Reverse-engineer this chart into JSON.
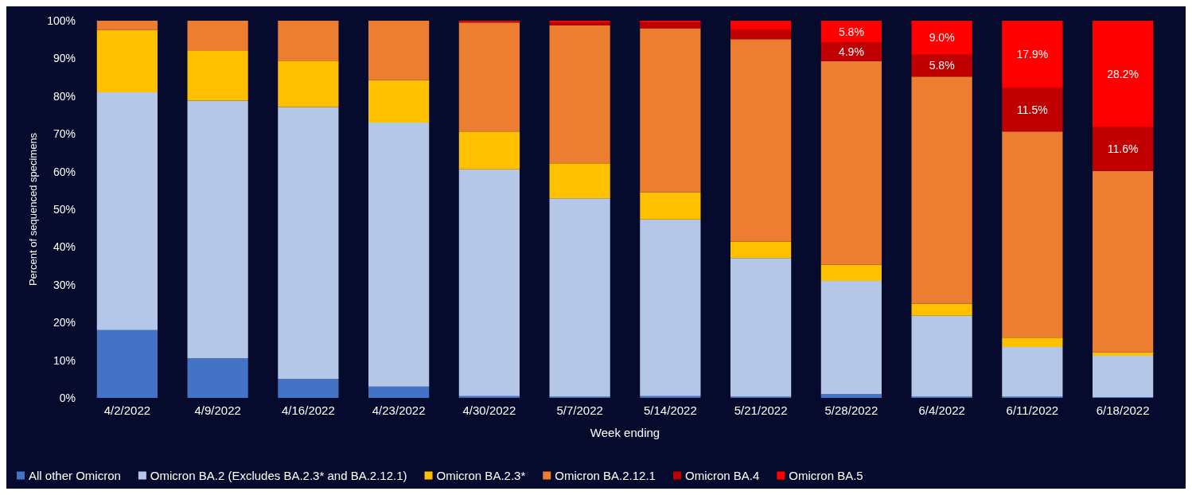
{
  "chart_data": {
    "type": "bar",
    "stacked": true,
    "xlabel": "Week ending",
    "ylabel": "Percent of sequenced specimens",
    "categories": [
      "4/2/2022",
      "4/9/2022",
      "4/16/2022",
      "4/23/2022",
      "4/30/2022",
      "5/7/2022",
      "5/14/2022",
      "5/21/2022",
      "5/28/2022",
      "6/4/2022",
      "6/11/2022",
      "6/18/2022"
    ],
    "ylim": [
      0,
      100
    ],
    "yticks": [
      {
        "value": 0,
        "label": "0%"
      },
      {
        "value": 10,
        "label": "10%"
      },
      {
        "value": 20,
        "label": "20%"
      },
      {
        "value": 30,
        "label": "30%"
      },
      {
        "value": 40,
        "label": "40%"
      },
      {
        "value": 50,
        "label": "50%"
      },
      {
        "value": 60,
        "label": "60%"
      },
      {
        "value": 70,
        "label": "70%"
      },
      {
        "value": 80,
        "label": "80%"
      },
      {
        "value": 90,
        "label": "90%"
      },
      {
        "value": 100,
        "label": "100%"
      }
    ],
    "grid": false,
    "legend": "bottom",
    "series": [
      {
        "name": "All other Omicron",
        "color": "#4472c4",
        "values": [
          18,
          10.5,
          5,
          3,
          0.5,
          0.3,
          0.5,
          0.3,
          1,
          0.3,
          0.3,
          0.2
        ]
      },
      {
        "name": "Omicron BA.2 (Excludes BA.2.3* and BA.2.12.1)",
        "color": "#b4c7e7",
        "values": [
          63,
          68.3,
          72.1,
          70,
          60.1,
          52.6,
          46.8,
          36.8,
          30,
          21.5,
          13.2,
          11
        ]
      },
      {
        "name": "Omicron BA.2.3*",
        "color": "#ffc000",
        "values": [
          16.5,
          13.2,
          12.3,
          11.3,
          10,
          9.3,
          7.2,
          4.3,
          4.3,
          3.2,
          2.5,
          0.9
        ]
      },
      {
        "name": "Omicron BA.2.12.1",
        "color": "#ed7d31",
        "values": [
          2.5,
          8,
          10.6,
          15.7,
          28.9,
          36.6,
          43.5,
          53.7,
          54,
          60.2,
          54.6,
          48.1
        ]
      },
      {
        "name": "Omicron BA.4",
        "color": "#c00000",
        "values": [
          0,
          0,
          0,
          0,
          0.3,
          0.8,
          1.5,
          2.5,
          4.9,
          5.8,
          11.5,
          11.6
        ],
        "value_labels": [
          null,
          null,
          null,
          null,
          null,
          null,
          null,
          null,
          "4.9%",
          "5.8%",
          "11.5%",
          "11.6%"
        ]
      },
      {
        "name": "Omicron BA.5",
        "color": "#ff0000",
        "values": [
          0,
          0,
          0,
          0,
          0.2,
          0.4,
          0.5,
          2.4,
          5.8,
          9.0,
          17.9,
          28.2
        ],
        "value_labels": [
          null,
          null,
          null,
          null,
          null,
          null,
          null,
          null,
          "5.8%",
          "9.0%",
          "17.9%",
          "28.2%"
        ]
      }
    ]
  }
}
